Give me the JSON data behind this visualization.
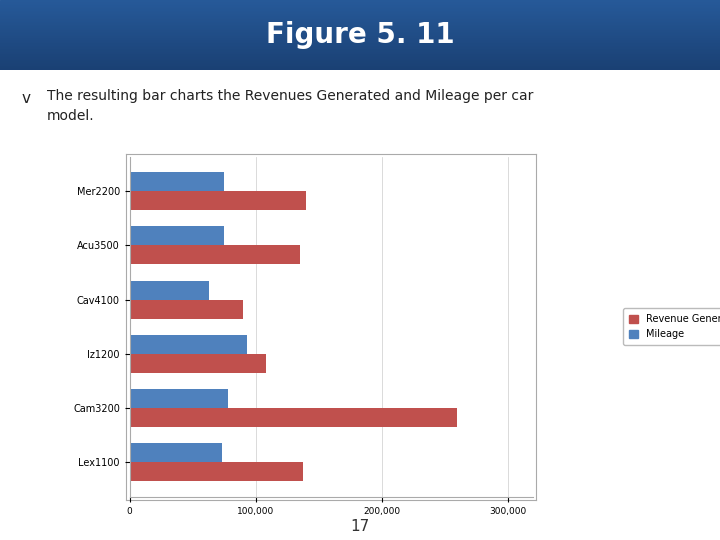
{
  "title": "Figure 5. 11",
  "title_text_color": "#ffffff",
  "subtitle_bullet": "v",
  "subtitle_text": "The resulting bar charts the Revenues Generated and Mileage per car\nmodel.",
  "categories": [
    "Mer2200",
    "Acu3500",
    "Cav4100",
    "Iz1200",
    "Cam3200",
    "Lex1100"
  ],
  "revenue": [
    140000,
    135000,
    90000,
    108000,
    260000,
    138000
  ],
  "mileage": [
    75000,
    75000,
    63000,
    93000,
    78000,
    73000
  ],
  "revenue_color": "#c0504d",
  "mileage_color": "#4f81bd",
  "legend_revenue": "Revenue Generated",
  "legend_mileage": "Mileage",
  "xlim": [
    0,
    320000
  ],
  "xticks": [
    0,
    100000,
    200000,
    300000
  ],
  "xtick_labels": [
    "0",
    "100,000",
    "200,000",
    "300,000"
  ],
  "slide_bg": "#ffffff",
  "title_bg": "#1b4d7e",
  "footer_text": "17",
  "footer_bg": "#c5d9f1",
  "chart_border": "#aaaaaa",
  "chart_bg": "#ffffff"
}
